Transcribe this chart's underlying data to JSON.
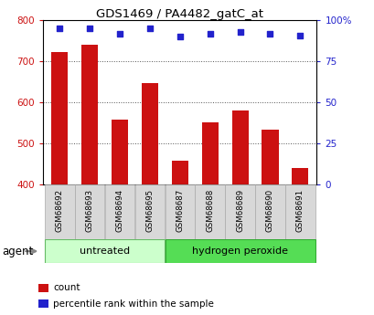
{
  "title": "GDS1469 / PA4482_gatC_at",
  "samples": [
    "GSM68692",
    "GSM68693",
    "GSM68694",
    "GSM68695",
    "GSM68687",
    "GSM68688",
    "GSM68689",
    "GSM68690",
    "GSM68691"
  ],
  "counts": [
    722,
    740,
    557,
    647,
    458,
    551,
    580,
    533,
    440
  ],
  "percentiles": [
    95,
    95,
    92,
    95,
    90,
    92,
    93,
    92,
    91
  ],
  "groups": [
    {
      "label": "untreated",
      "indices": [
        0,
        1,
        2,
        3
      ],
      "color": "#ccffcc",
      "edge": "#66bb66"
    },
    {
      "label": "hydrogen peroxide",
      "indices": [
        4,
        5,
        6,
        7,
        8
      ],
      "color": "#55dd55",
      "edge": "#33aa33"
    }
  ],
  "ylim_left": [
    400,
    800
  ],
  "ylim_right": [
    0,
    100
  ],
  "yticks_left": [
    400,
    500,
    600,
    700,
    800
  ],
  "yticks_right": [
    0,
    25,
    50,
    75,
    100
  ],
  "bar_color": "#cc1111",
  "dot_color": "#2222cc",
  "bar_width": 0.55,
  "grid_color": "#555555",
  "background_color": "#ffffff",
  "tick_color_left": "#cc1111",
  "tick_color_right": "#2222cc",
  "legend_count_color": "#cc1111",
  "legend_pct_color": "#2222cc",
  "sample_box_color": "#d8d8d8",
  "sample_box_edge": "#aaaaaa"
}
